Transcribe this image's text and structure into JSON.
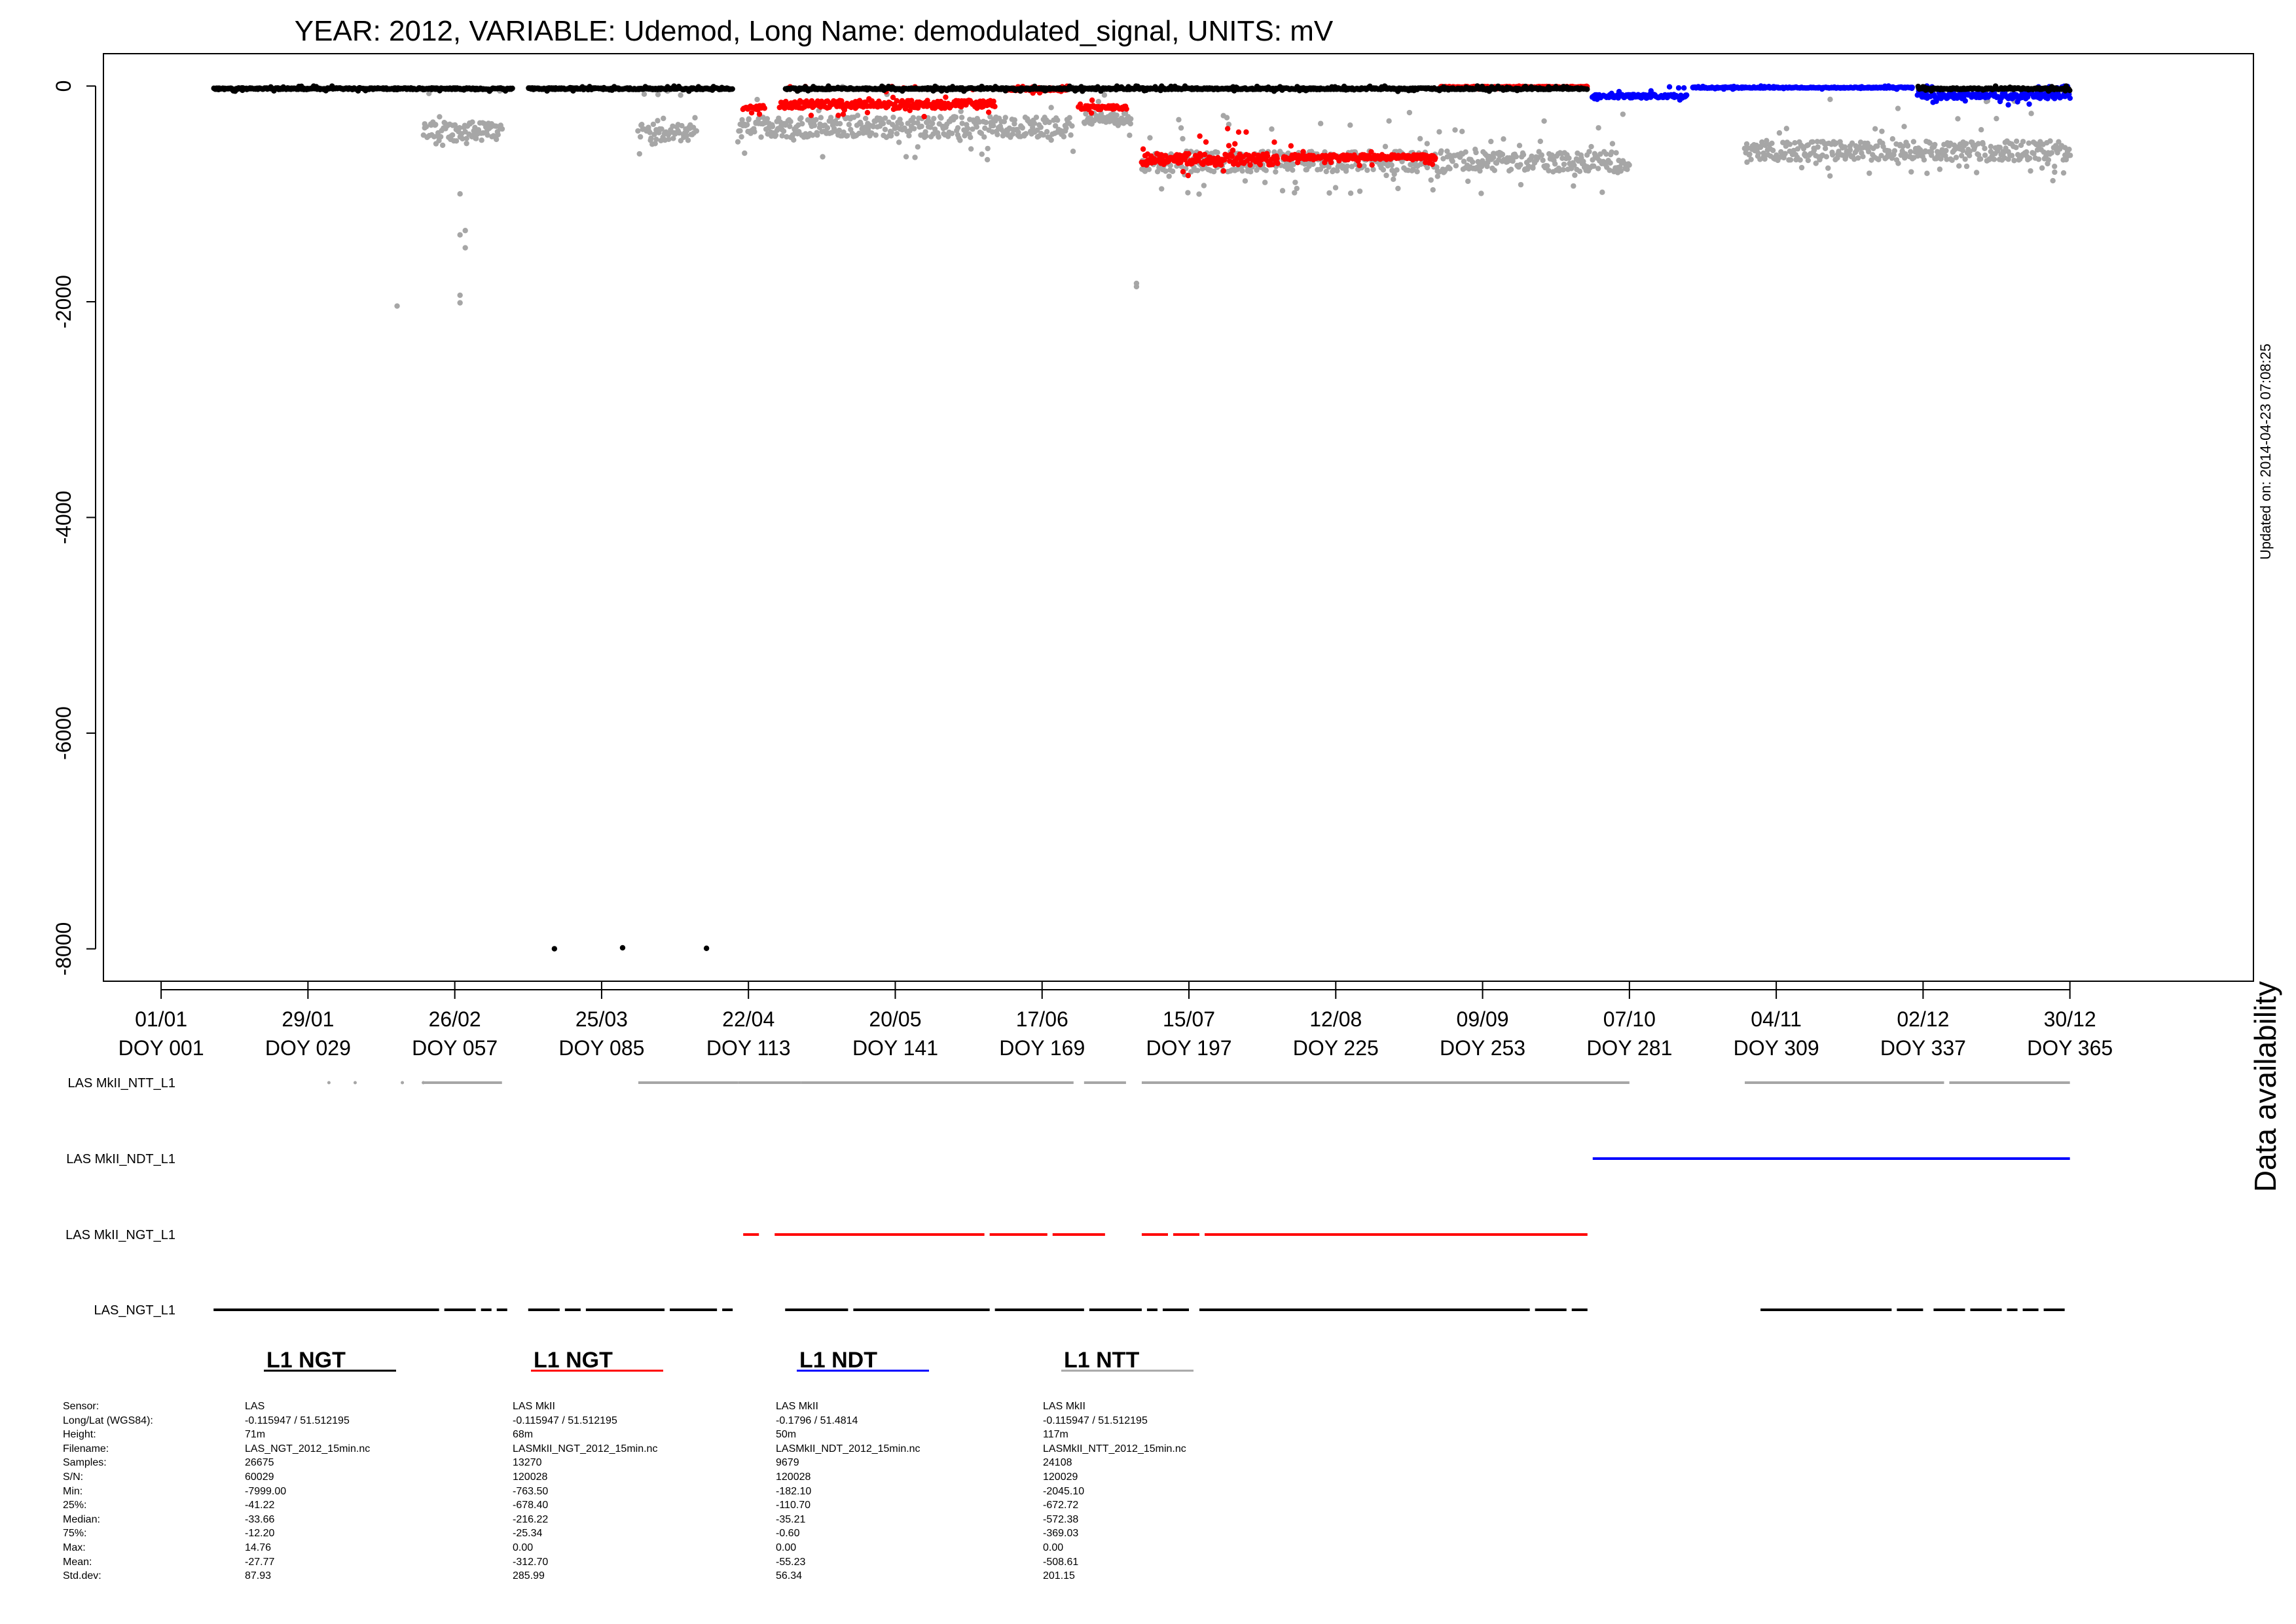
{
  "chart_data": {
    "type": "scatter",
    "title": "YEAR: 2012, VARIABLE: Udemod, Long Name: demodulated_signal, UNITS: mV",
    "updated": "Updated on: 2014-04-23 07:08:25",
    "x_range_doy": [
      -10,
      400
    ],
    "ylim": [
      -8300,
      300
    ],
    "yticks": [
      0,
      -2000,
      -4000,
      -6000,
      -8000
    ],
    "yticklabels": [
      "0",
      "-2000",
      "-4000",
      "-6000",
      "-8000"
    ],
    "xticks": [
      {
        "doy": 1,
        "date": "01/01",
        "label": "DOY 001"
      },
      {
        "doy": 29,
        "date": "29/01",
        "label": "DOY 029"
      },
      {
        "doy": 57,
        "date": "26/02",
        "label": "DOY 057"
      },
      {
        "doy": 85,
        "date": "25/03",
        "label": "DOY 085"
      },
      {
        "doy": 113,
        "date": "22/04",
        "label": "DOY 113"
      },
      {
        "doy": 141,
        "date": "20/05",
        "label": "DOY 141"
      },
      {
        "doy": 169,
        "date": "17/06",
        "label": "DOY 169"
      },
      {
        "doy": 197,
        "date": "15/07",
        "label": "DOY 197"
      },
      {
        "doy": 225,
        "date": "12/08",
        "label": "DOY 225"
      },
      {
        "doy": 253,
        "date": "09/09",
        "label": "DOY 253"
      },
      {
        "doy": 281,
        "date": "07/10",
        "label": "DOY 281"
      },
      {
        "doy": 309,
        "date": "04/11",
        "label": "DOY 309"
      },
      {
        "doy": 337,
        "date": "02/12",
        "label": "DOY 337"
      },
      {
        "doy": 365,
        "date": "30/12",
        "label": "DOY 365"
      }
    ],
    "series": [
      {
        "name": "LASMkII_NTT_L1",
        "color": "#a6a6a6",
        "legend": "L1 NTT",
        "segments": [
          {
            "x": [
              51,
              66
            ],
            "base": -420,
            "spread": 300
          },
          {
            "x": [
              92,
              103
            ],
            "base": -430,
            "spread": 260
          },
          {
            "x": [
              111,
              175
            ],
            "base": -380,
            "spread": 320
          },
          {
            "x": [
              177,
              186
            ],
            "base": -300,
            "spread": 180
          },
          {
            "x": [
              188,
              281
            ],
            "base": -700,
            "spread": 320
          },
          {
            "x": [
              303,
              365
            ],
            "base": -600,
            "spread": 300
          }
        ],
        "outliers": [
          [
            46,
            -2040
          ],
          [
            58,
            -1000
          ],
          [
            58,
            -1380
          ],
          [
            59,
            -1340
          ],
          [
            59,
            -1500
          ],
          [
            58,
            -1940
          ],
          [
            58,
            -2010
          ],
          [
            187,
            -1830
          ],
          [
            187,
            -1860
          ]
        ]
      },
      {
        "name": "LASMkII_NGT_L1",
        "color": "#ff0000",
        "legend": "L1 NGT",
        "segments": [
          {
            "x": [
              112,
              116
            ],
            "base": -200,
            "spread": 70
          },
          {
            "x": [
              119,
              160
            ],
            "base": -170,
            "spread": 120
          },
          {
            "x": [
              162,
              174
            ],
            "base": -30,
            "spread": 40
          },
          {
            "x": [
              176,
              185
            ],
            "base": -200,
            "spread": 60
          },
          {
            "x": [
              188,
              214
            ],
            "base": -680,
            "spread": 180
          },
          {
            "x": [
              215,
              244
            ],
            "base": -660,
            "spread": 80
          },
          {
            "x": [
              245,
              273
            ],
            "base": -10,
            "spread": 20
          }
        ],
        "outliers": []
      },
      {
        "name": "LASMkII_NDT_L1",
        "color": "#0000ff",
        "legend": "L1 NDT",
        "segments": [
          {
            "x": [
              274,
              292
            ],
            "base": -95,
            "spread": 55
          },
          {
            "x": [
              293,
              335
            ],
            "base": -15,
            "spread": 15
          },
          {
            "x": [
              336,
              365
            ],
            "base": -90,
            "spread": 90
          }
        ],
        "outliers": []
      },
      {
        "name": "LAS_NGT_L1",
        "color": "#000000",
        "legend": "L1 NGT",
        "segments": [
          {
            "x": [
              11,
              68
            ],
            "base": -25,
            "spread": 25
          },
          {
            "x": [
              71,
              110
            ],
            "base": -25,
            "spread": 25
          },
          {
            "x": [
              120,
              273
            ],
            "base": -25,
            "spread": 25
          },
          {
            "x": [
              336,
              365
            ],
            "base": -25,
            "spread": 25
          }
        ],
        "outliers": [
          [
            76,
            -7999
          ],
          [
            89,
            -7990
          ],
          [
            105,
            -7995
          ]
        ]
      }
    ],
    "availability": {
      "title": "Data availability",
      "rows": [
        {
          "label": "LAS MkII_NTT_L1",
          "color": "#a6a6a6",
          "ranges": [
            [
              51,
              66
            ],
            [
              92,
              111
            ],
            [
              111,
              123
            ],
            [
              123,
              175
            ],
            [
              177,
              185
            ],
            [
              188,
              281
            ],
            [
              303,
              341
            ],
            [
              342,
              365
            ]
          ],
          "dots": [
            33,
            38,
            47,
            51
          ]
        },
        {
          "label": "LAS MkII_NDT_L1",
          "color": "#0000ff",
          "ranges": [
            [
              274,
              365
            ]
          ],
          "dots": []
        },
        {
          "label": "LAS MkII_NGT_L1",
          "color": "#ff0000",
          "ranges": [
            [
              112,
              115
            ],
            [
              118,
              158
            ],
            [
              159,
              170
            ],
            [
              171,
              181
            ],
            [
              188,
              193
            ],
            [
              194,
              199
            ],
            [
              200,
              273
            ]
          ],
          "dots": []
        },
        {
          "label": "LAS_NGT_L1",
          "color": "#000000",
          "ranges": [
            [
              11,
              54
            ],
            [
              55,
              61
            ],
            [
              62,
              64
            ],
            [
              65,
              67
            ],
            [
              71,
              77
            ],
            [
              78,
              81
            ],
            [
              82,
              97
            ],
            [
              98,
              107
            ],
            [
              108,
              110
            ],
            [
              120,
              132
            ],
            [
              133,
              159
            ],
            [
              160,
              177
            ],
            [
              178,
              188
            ],
            [
              189,
              191
            ],
            [
              192,
              197
            ],
            [
              199,
              262
            ],
            [
              263,
              269
            ],
            [
              270,
              273
            ],
            [
              306,
              331
            ],
            [
              332,
              337
            ],
            [
              339,
              345
            ],
            [
              346,
              352
            ],
            [
              353,
              355
            ],
            [
              356,
              359
            ],
            [
              360,
              364
            ]
          ],
          "dots": []
        }
      ]
    },
    "legend": [
      {
        "label": "L1 NGT",
        "color": "#000000"
      },
      {
        "label": "L1 NGT",
        "color": "#ff0000"
      },
      {
        "label": "L1 NDT",
        "color": "#0000ff"
      },
      {
        "label": "L1 NTT",
        "color": "#a6a6a6"
      }
    ]
  },
  "stats": {
    "labels": [
      "Sensor:",
      "Long/Lat (WGS84):",
      "Height:",
      "Filename:",
      "Samples:",
      "S/N:",
      "Min:",
      "25%:",
      "Median:",
      "75%:",
      "Max:",
      "Mean:",
      "Std.dev:"
    ],
    "columns": [
      [
        "LAS",
        "-0.115947 / 51.512195",
        "71m",
        "LAS_NGT_2012_15min.nc",
        "26675",
        "60029",
        "-7999.00",
        "-41.22",
        "-33.66",
        "-12.20",
        "14.76",
        "-27.77",
        "87.93"
      ],
      [
        "LAS MkII",
        "-0.115947 / 51.512195",
        "68m",
        "LASMkII_NGT_2012_15min.nc",
        "13270",
        "120028",
        "-763.50",
        "-678.40",
        "-216.22",
        "-25.34",
        "0.00",
        "-312.70",
        "285.99"
      ],
      [
        "LAS MkII",
        "-0.1796 / 51.4814",
        "50m",
        "LASMkII_NDT_2012_15min.nc",
        "9679",
        "120028",
        "-182.10",
        "-110.70",
        "-35.21",
        "-0.60",
        "0.00",
        "-55.23",
        "56.34"
      ],
      [
        "LAS MkII",
        "-0.115947 / 51.512195",
        "117m",
        "LASMkII_NTT_2012_15min.nc",
        "24108",
        "120029",
        "-2045.10",
        "-672.72",
        "-572.38",
        "-369.03",
        "0.00",
        "-508.61",
        "201.15"
      ]
    ]
  }
}
